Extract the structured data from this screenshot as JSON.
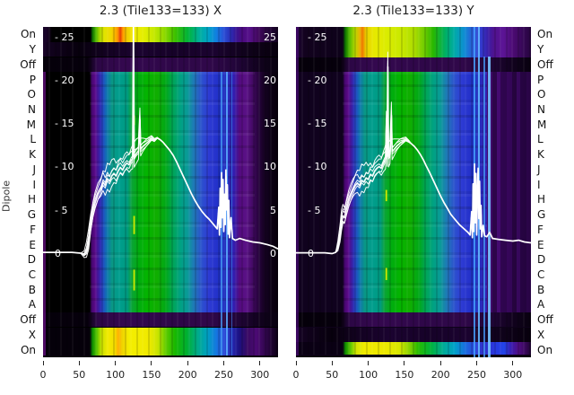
{
  "figure": {
    "ylabel": "Dipole",
    "row_labels": [
      "On",
      "Y",
      "Off",
      "P",
      "O",
      "N",
      "M",
      "L",
      "K",
      "J",
      "I",
      "H",
      "G",
      "F",
      "E",
      "D",
      "C",
      "B",
      "A",
      "Off",
      "X",
      "On"
    ],
    "x_tick_labels": [
      "0",
      "50",
      "100",
      "150",
      "200",
      "250",
      "300"
    ],
    "y_tick_labels_left": [
      "- 25",
      "- 20",
      "- 15",
      "- 10",
      "- 5",
      "0"
    ],
    "y_tick_labels_right": [
      "25",
      "20",
      "15",
      "10",
      "5",
      "0"
    ]
  },
  "chart_data": {
    "type": "heatmap",
    "description": "Two spectral waterfall heatmaps (dipole rows vs frequency channel) for Tile133, X and Y polarisation, with an overlaid bundle of white power curves. Colormap runs black - purple - blue - teal - green - yellow - orange.",
    "x_range": [
      0,
      325
    ],
    "x_ticks": [
      0,
      50,
      100,
      150,
      200,
      250,
      300
    ],
    "y_value_ticks": [
      25,
      20,
      15,
      10,
      5,
      0
    ],
    "row_labels": [
      "On",
      "Y",
      "Off",
      "P",
      "O",
      "N",
      "M",
      "L",
      "K",
      "J",
      "I",
      "H",
      "G",
      "F",
      "E",
      "D",
      "C",
      "B",
      "A",
      "Off",
      "X",
      "On"
    ],
    "legend_position": "none",
    "grid": false,
    "panels": [
      {
        "title": "2.3 (Tile133=133) X",
        "has_right_value_labels": true,
        "curve": [
          [
            0,
            0.2
          ],
          [
            40,
            0.2
          ],
          [
            52,
            0.1
          ],
          [
            57,
            -0.1
          ],
          [
            60,
            0.3
          ],
          [
            63,
            1.4
          ],
          [
            66,
            3.4
          ],
          [
            69,
            4.9
          ],
          [
            72,
            5.9
          ],
          [
            76,
            6.9
          ],
          [
            80,
            7.5
          ],
          [
            83,
            8.3
          ],
          [
            86,
            7.9
          ],
          [
            89,
            8.7
          ],
          [
            92,
            8.4
          ],
          [
            95,
            9.0
          ],
          [
            98,
            9.3
          ],
          [
            101,
            9.0
          ],
          [
            104,
            9.6
          ],
          [
            107,
            10.0
          ],
          [
            110,
            9.7
          ],
          [
            113,
            10.2
          ],
          [
            116,
            10.5
          ],
          [
            119,
            10.3
          ],
          [
            122,
            10.8
          ],
          [
            124,
            11.0
          ],
          [
            125,
            27.0
          ],
          [
            126,
            11.2
          ],
          [
            129,
            11.6
          ],
          [
            132,
            11.9
          ],
          [
            134,
            15.5
          ],
          [
            135,
            12.1
          ],
          [
            138,
            12.4
          ],
          [
            142,
            12.7
          ],
          [
            146,
            13.0
          ],
          [
            150,
            13.3
          ],
          [
            154,
            13.1
          ],
          [
            158,
            13.4
          ],
          [
            162,
            13.2
          ],
          [
            166,
            12.9
          ],
          [
            170,
            12.5
          ],
          [
            175,
            12.0
          ],
          [
            180,
            11.4
          ],
          [
            185,
            10.6
          ],
          [
            190,
            9.7
          ],
          [
            195,
            8.8
          ],
          [
            200,
            7.9
          ],
          [
            205,
            7.0
          ],
          [
            210,
            6.2
          ],
          [
            215,
            5.5
          ],
          [
            220,
            4.9
          ],
          [
            225,
            4.4
          ],
          [
            230,
            4.0
          ],
          [
            234,
            3.6
          ],
          [
            238,
            3.2
          ],
          [
            241,
            2.9
          ],
          [
            243,
            5.4
          ],
          [
            244,
            2.2
          ],
          [
            245,
            7.6
          ],
          [
            246,
            3.1
          ],
          [
            247,
            9.4
          ],
          [
            248,
            4.2
          ],
          [
            249,
            8.6
          ],
          [
            250,
            2.6
          ],
          [
            251,
            6.9
          ],
          [
            252,
            3.4
          ],
          [
            253,
            9.7
          ],
          [
            254,
            5.1
          ],
          [
            255,
            8.0
          ],
          [
            256,
            2.3
          ],
          [
            257,
            6.2
          ],
          [
            258,
            1.9
          ],
          [
            260,
            4.2
          ],
          [
            262,
            1.8
          ],
          [
            266,
            1.6
          ],
          [
            272,
            1.8
          ],
          [
            280,
            1.6
          ],
          [
            290,
            1.4
          ],
          [
            300,
            1.3
          ],
          [
            310,
            1.1
          ],
          [
            318,
            0.9
          ],
          [
            325,
            0.6
          ]
        ],
        "marks": [
          [
            126,
            16.0,
            14.9
          ],
          [
            126,
            4.4,
            2.3
          ],
          [
            126,
            -1.8,
            -4.2
          ]
        ]
      },
      {
        "title": "2.3 (Tile133=133) Y",
        "has_right_value_labels": false,
        "curve": [
          [
            0,
            0.15
          ],
          [
            40,
            0.15
          ],
          [
            50,
            0.05
          ],
          [
            55,
            0.2
          ],
          [
            58,
            0.8
          ],
          [
            61,
            2.2
          ],
          [
            63,
            3.6
          ],
          [
            65,
            4.4
          ],
          [
            67,
            4.2
          ],
          [
            70,
            5.2
          ],
          [
            73,
            6.1
          ],
          [
            76,
            6.8
          ],
          [
            79,
            7.4
          ],
          [
            82,
            7.9
          ],
          [
            85,
            8.2
          ],
          [
            88,
            7.9
          ],
          [
            91,
            8.5
          ],
          [
            94,
            8.3
          ],
          [
            97,
            8.8
          ],
          [
            100,
            8.6
          ],
          [
            103,
            9.2
          ],
          [
            106,
            9.0
          ],
          [
            109,
            9.6
          ],
          [
            112,
            9.9
          ],
          [
            115,
            10.1
          ],
          [
            118,
            9.9
          ],
          [
            121,
            10.5
          ],
          [
            123,
            10.8
          ],
          [
            124,
            11.0
          ],
          [
            125,
            14.8
          ],
          [
            126,
            11.3
          ],
          [
            127,
            21.6
          ],
          [
            128,
            11.2
          ],
          [
            130,
            11.5
          ],
          [
            132,
            16.0
          ],
          [
            133,
            11.8
          ],
          [
            136,
            12.1
          ],
          [
            140,
            12.5
          ],
          [
            144,
            12.8
          ],
          [
            148,
            13.0
          ],
          [
            152,
            13.2
          ],
          [
            156,
            13.0
          ],
          [
            160,
            12.7
          ],
          [
            164,
            12.4
          ],
          [
            168,
            12.0
          ],
          [
            172,
            11.5
          ],
          [
            176,
            10.9
          ],
          [
            180,
            10.2
          ],
          [
            185,
            9.4
          ],
          [
            190,
            8.5
          ],
          [
            195,
            7.6
          ],
          [
            200,
            6.7
          ],
          [
            205,
            5.9
          ],
          [
            210,
            5.2
          ],
          [
            214,
            4.6
          ],
          [
            218,
            4.2
          ],
          [
            222,
            3.8
          ],
          [
            226,
            3.4
          ],
          [
            230,
            3.1
          ],
          [
            234,
            2.8
          ],
          [
            238,
            2.5
          ],
          [
            241,
            2.2
          ],
          [
            243,
            4.9
          ],
          [
            244,
            1.9
          ],
          [
            245,
            8.1
          ],
          [
            246,
            2.6
          ],
          [
            247,
            10.4
          ],
          [
            248,
            3.6
          ],
          [
            249,
            9.3
          ],
          [
            250,
            2.2
          ],
          [
            251,
            7.0
          ],
          [
            252,
            9.9
          ],
          [
            253,
            4.1
          ],
          [
            254,
            8.4
          ],
          [
            255,
            2.9
          ],
          [
            256,
            5.6
          ],
          [
            257,
            2.0
          ],
          [
            259,
            3.3
          ],
          [
            261,
            2.1
          ],
          [
            264,
            2.0
          ],
          [
            268,
            2.5
          ],
          [
            272,
            1.8
          ],
          [
            280,
            1.7
          ],
          [
            290,
            1.6
          ],
          [
            300,
            1.5
          ],
          [
            308,
            1.6
          ],
          [
            316,
            1.4
          ],
          [
            325,
            1.3
          ]
        ],
        "marks": [
          [
            125,
            7.4,
            6.1
          ],
          [
            125,
            -1.6,
            -3.0
          ]
        ]
      }
    ]
  }
}
